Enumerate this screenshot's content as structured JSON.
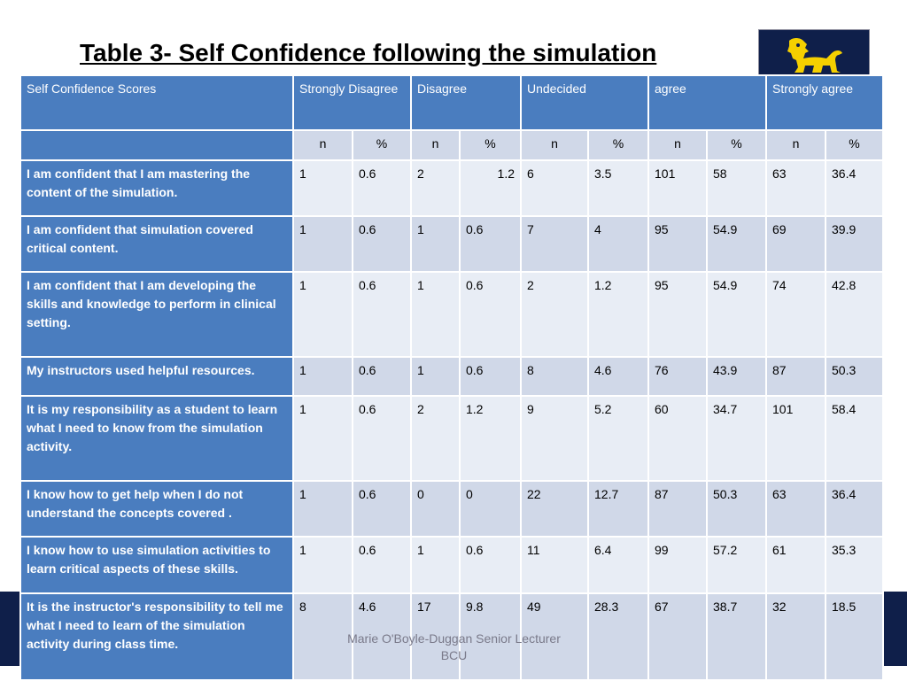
{
  "title": "Table 3- Self Confidence following the simulation",
  "logo": {
    "icon": "lion-crest-icon",
    "background": "#0f1f4a",
    "accent": "#f5d000"
  },
  "colors": {
    "header": "#4a7dbf",
    "row_alt": "#d0d8e8",
    "row_plain": "#e8edf5",
    "band": "#0f1f4a"
  },
  "table": {
    "header": [
      "Self Confidence Scores",
      "Strongly Disagree",
      "Disagree",
      "Undecided",
      "agree",
      "Strongly agree"
    ],
    "subheader": [
      "n",
      "%",
      "n",
      "%",
      "n",
      "%",
      "n",
      "%",
      "n",
      "%"
    ],
    "rows": [
      {
        "label": "I am confident that I am mastering the content of the simulation.",
        "values": [
          "1",
          "0.6",
          "2",
          "1.2",
          "6",
          "3.5",
          "101",
          "58",
          "63",
          "36.4"
        ]
      },
      {
        "label": "I am confident that simulation covered critical content.",
        "values": [
          "1",
          "0.6",
          "1",
          "0.6",
          "7",
          "4",
          "95",
          "54.9",
          "69",
          "39.9"
        ]
      },
      {
        "label": "I am confident that I am developing the skills and knowledge to perform in clinical setting.",
        "values": [
          "1",
          "0.6",
          "1",
          "0.6",
          "2",
          "1.2",
          "95",
          "54.9",
          "74",
          "42.8"
        ]
      },
      {
        "label": "My instructors used helpful resources.",
        "values": [
          "1",
          "0.6",
          "1",
          "0.6",
          "8",
          "4.6",
          "76",
          "43.9",
          "87",
          "50.3"
        ]
      },
      {
        "label": "It is my responsibility as a student to learn what I need to know from the simulation activity.",
        "values": [
          "1",
          "0.6",
          "2",
          "1.2",
          "9",
          "5.2",
          "60",
          "34.7",
          "101",
          "58.4"
        ]
      },
      {
        "label": "I know how to get help when I do not understand the concepts  covered .",
        "values": [
          "1",
          "0.6",
          "0",
          "0",
          "22",
          "12.7",
          "87",
          "50.3",
          "63",
          "36.4"
        ]
      },
      {
        "label": "I know how to use simulation activities to learn critical aspects of these skills.",
        "values": [
          "1",
          "0.6",
          "1",
          "0.6",
          "11",
          "6.4",
          "99",
          "57.2",
          "61",
          "35.3"
        ]
      },
      {
        "label": "It is the instructor's responsibility to tell me what I need to learn of the simulation activity during class time.",
        "values": [
          "8",
          "4.6",
          "17",
          "9.8",
          "49",
          "28.3",
          "67",
          "38.7",
          "32",
          "18.5"
        ]
      }
    ]
  },
  "footer": {
    "line1": "Marie O'Boyle-Duggan   Senior Lecturer",
    "line2": "BCU"
  }
}
